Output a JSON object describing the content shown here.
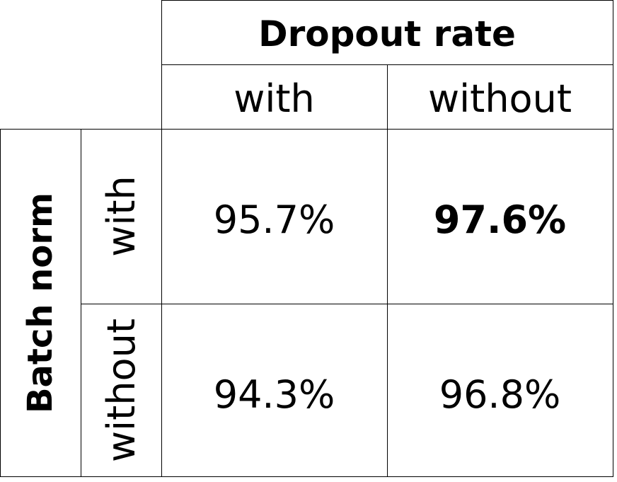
{
  "table": {
    "column_title": "Dropout rate",
    "row_title": "Batch norm",
    "column_headers": [
      "with",
      "without"
    ],
    "row_headers": [
      "with",
      "without"
    ],
    "values": [
      [
        "95.7%",
        "97.6%"
      ],
      [
        "94.3%",
        "96.8%"
      ]
    ],
    "best_value": "97.6%",
    "best_cell": "row with / column without (shown in bold)"
  }
}
